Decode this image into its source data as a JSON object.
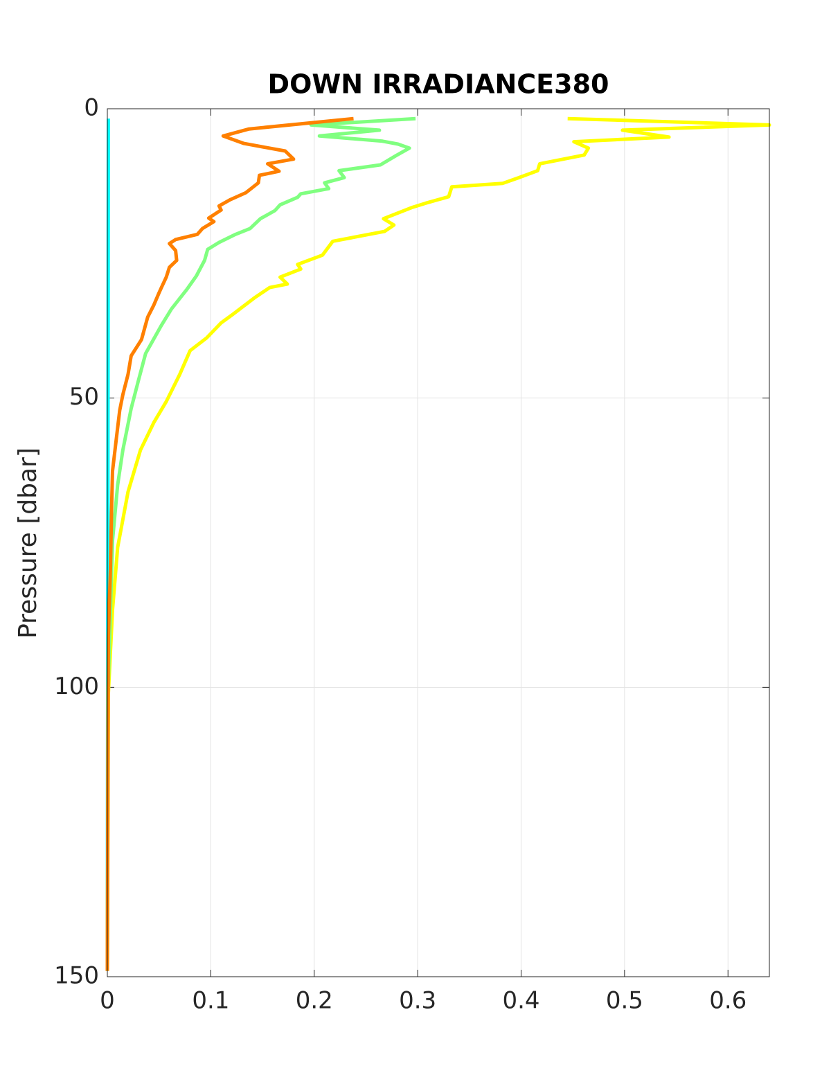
{
  "chart_data": {
    "type": "line",
    "title": "DOWN IRRADIANCE380",
    "y_label": "Pressure [dbar]",
    "xlim": [
      0,
      0.64
    ],
    "xticks": [
      0,
      0.1,
      0.2,
      0.3,
      0.4,
      0.5,
      0.6
    ],
    "ylim": [
      0,
      150
    ],
    "yticks": [
      0,
      50,
      100,
      150
    ],
    "y_reversed": true,
    "grid": true,
    "series": [
      {
        "color": "#00ffff",
        "x": [
          0.001,
          0.0005,
          0
        ],
        "y": [
          1.7,
          80,
          149
        ]
      },
      {
        "color": "#ffff00",
        "x": [
          0.445,
          0.64,
          0.498,
          0.543,
          0.451,
          0.465,
          0.461,
          0.418,
          0.416,
          0.398,
          0.382,
          0.333,
          0.33,
          0.308,
          0.294,
          0.267,
          0.277,
          0.268,
          0.218,
          0.208,
          0.184,
          0.187,
          0.167,
          0.174,
          0.157,
          0.142,
          0.12,
          0.11,
          0.096,
          0.08,
          0.07,
          0.057,
          0.045,
          0.032,
          0.02,
          0.01,
          0.005,
          0.001,
          0
        ],
        "y": [
          1.7,
          2.8,
          3.7,
          4.9,
          5.7,
          6.8,
          8.0,
          9.5,
          10.7,
          11.9,
          12.9,
          13.5,
          15.2,
          16.3,
          17.1,
          19.0,
          20.1,
          21.2,
          22.9,
          25.3,
          26.9,
          27.7,
          29.1,
          30.3,
          30.9,
          32.7,
          35.7,
          37.0,
          39.6,
          41.8,
          45.9,
          50.6,
          54.2,
          59.0,
          66.2,
          75.8,
          86.6,
          101,
          149
        ]
      },
      {
        "color": "#80ff80",
        "x": [
          0.298,
          0.197,
          0.263,
          0.205,
          0.266,
          0.281,
          0.292,
          0.279,
          0.264,
          0.224,
          0.229,
          0.21,
          0.214,
          0.187,
          0.184,
          0.167,
          0.162,
          0.148,
          0.138,
          0.124,
          0.108,
          0.097,
          0.094,
          0.086,
          0.077,
          0.062,
          0.052,
          0.037,
          0.03,
          0.023,
          0.015,
          0.01,
          0.005,
          0.003,
          0.0007,
          0
        ],
        "y": [
          1.7,
          2.8,
          3.7,
          4.7,
          5.6,
          6.1,
          6.8,
          8.1,
          9.7,
          10.7,
          11.9,
          12.8,
          13.8,
          14.7,
          15.3,
          16.6,
          17.6,
          19.0,
          20.7,
          21.7,
          23.1,
          24.3,
          26.2,
          28.9,
          31.2,
          34.6,
          37.5,
          42.3,
          47.0,
          51.8,
          59.0,
          65.0,
          74.6,
          86.6,
          101,
          149
        ]
      },
      {
        "color": "#ff8000",
        "x": [
          0.238,
          0.137,
          0.112,
          0.132,
          0.172,
          0.18,
          0.155,
          0.166,
          0.147,
          0.146,
          0.134,
          0.119,
          0.108,
          0.11,
          0.098,
          0.103,
          0.092,
          0.087,
          0.066,
          0.06,
          0.066,
          0.067,
          0.06,
          0.057,
          0.052,
          0.05,
          0.045,
          0.039,
          0.033,
          0.023,
          0.02,
          0.015,
          0.012,
          0.009,
          0.005,
          0.004,
          0.003,
          0.001,
          0.0007,
          0
        ],
        "y": [
          1.7,
          3.5,
          4.7,
          6.0,
          7.3,
          8.7,
          9.5,
          10.8,
          11.5,
          12.8,
          14.5,
          15.7,
          16.8,
          17.5,
          18.9,
          19.5,
          20.7,
          21.7,
          22.6,
          23.3,
          24.5,
          26.2,
          27.4,
          29.1,
          31.0,
          31.8,
          33.9,
          36.0,
          39.9,
          42.7,
          45.9,
          49.4,
          52.1,
          56.6,
          62.6,
          69.8,
          79.4,
          91.3,
          107,
          149
        ]
      }
    ]
  }
}
